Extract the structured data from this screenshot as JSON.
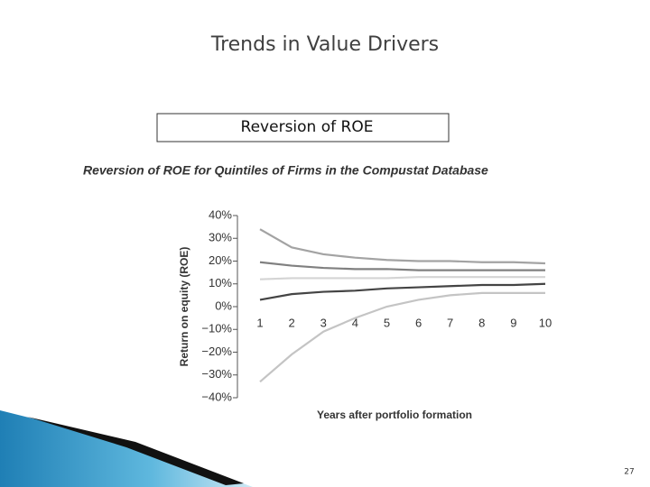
{
  "slide": {
    "title": "Trends in Value Drivers",
    "box_label": "Reversion of ROE",
    "page_number": "27"
  },
  "chart_data": {
    "type": "line",
    "title": "Reversion of ROE for Quintiles of Firms in the Compustat Database",
    "x_label": "Years after portfolio formation",
    "y_label": "Return on equity (ROE)",
    "x": [
      1,
      2,
      3,
      4,
      5,
      6,
      7,
      8,
      9,
      10
    ],
    "xlim": [
      1,
      10
    ],
    "xticks": [
      1,
      2,
      3,
      4,
      5,
      6,
      7,
      8,
      9,
      10
    ],
    "ylim": [
      -40,
      40
    ],
    "yticks": [
      {
        "value": 40,
        "label": "40%"
      },
      {
        "value": 30,
        "label": "30%"
      },
      {
        "value": 20,
        "label": "20%"
      },
      {
        "value": 10,
        "label": "10%"
      },
      {
        "value": 0,
        "label": "0%"
      },
      {
        "value": -10,
        "label": "−10%"
      },
      {
        "value": -20,
        "label": "−20%"
      },
      {
        "value": -30,
        "label": "−30%"
      },
      {
        "value": -40,
        "label": "−40%"
      }
    ],
    "grid": false,
    "series": [
      {
        "color": "#a3a3a3",
        "values": [
          34,
          26,
          23,
          21.5,
          20.5,
          20,
          20,
          19.5,
          19.5,
          19
        ]
      },
      {
        "color": "#808080",
        "values": [
          19.5,
          18,
          17,
          16.5,
          16.5,
          16,
          16,
          16,
          16,
          16
        ]
      },
      {
        "color": "#d4d4d4",
        "values": [
          12,
          12.5,
          12.5,
          12.5,
          12.5,
          13,
          13,
          13,
          13,
          13
        ]
      },
      {
        "color": "#444444",
        "values": [
          3,
          5.5,
          6.5,
          7,
          8,
          8.5,
          9,
          9.5,
          9.5,
          10
        ]
      },
      {
        "color": "#c4c4c4",
        "values": [
          -33,
          -21,
          -11,
          -5,
          0,
          3,
          5,
          6,
          6,
          6
        ]
      }
    ]
  }
}
